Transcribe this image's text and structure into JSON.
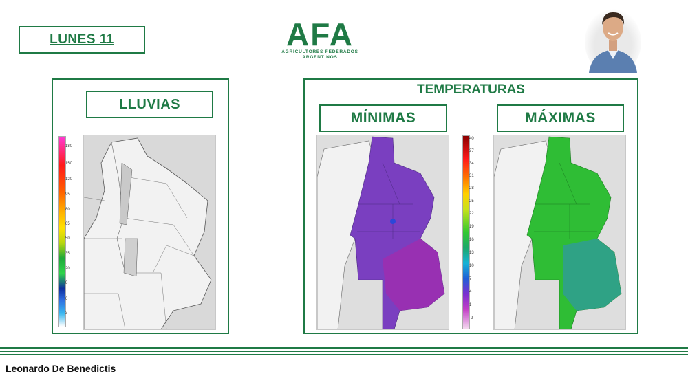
{
  "header": {
    "day_label": "LUNES 11",
    "logo_text": "AFA",
    "logo_subtitle_1": "AGRICULTORES FEDERADOS",
    "logo_subtitle_2": "ARGENTINOS"
  },
  "rain_panel": {
    "title": "LLUVIAS",
    "scale": [
      "180",
      "150",
      "120",
      "95",
      "80",
      "65",
      "50",
      "35",
      "20",
      "9",
      "6",
      "3"
    ]
  },
  "temp_panel": {
    "title": "TEMPERATURAS",
    "min_title": "MÍNIMAS",
    "max_title": "MÁXIMAS",
    "scale": [
      "40",
      "37",
      "34",
      "31",
      "28",
      "25",
      "22",
      "19",
      "16",
      "13",
      "10",
      "7",
      "4",
      "1",
      "-2"
    ]
  },
  "footer": {
    "presenter": "Leonardo De Benedictis"
  },
  "colors": {
    "brand_green": "#1f7a45",
    "min_temp_fill": "#7a3fc0",
    "max_temp_fill": "#2fbd35"
  }
}
